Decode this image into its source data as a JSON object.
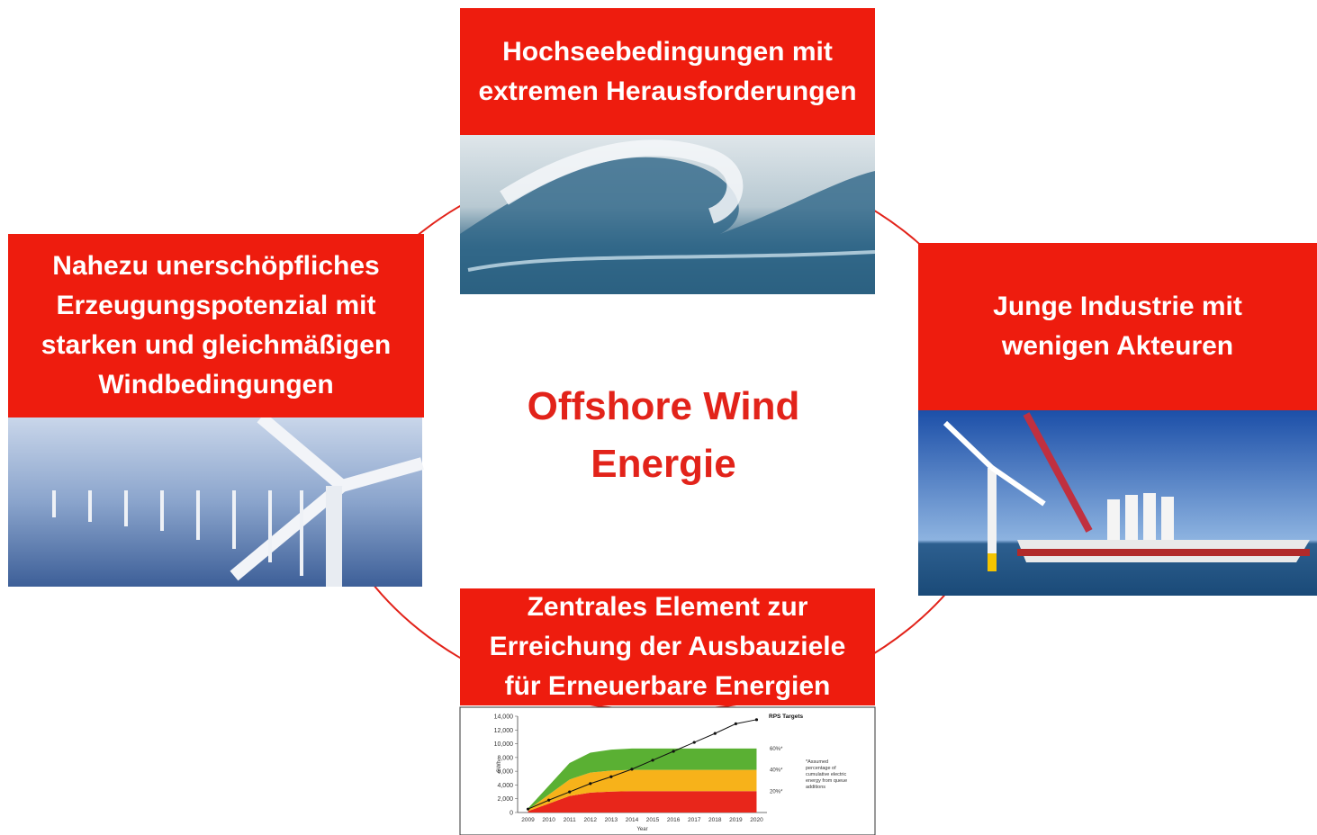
{
  "center": {
    "lines": [
      "Offshore Wind",
      "Energie"
    ]
  },
  "nodes": [
    {
      "lines": [
        "Hochseebedingungen mit",
        "extremen Herausforderungen"
      ]
    },
    {
      "lines": [
        "Nahezu unerschöpfliches",
        "Erzeugungspotenzial mit",
        "starken und gleichmäßigen",
        "Windbedingungen"
      ]
    },
    {
      "lines": [
        "Junge Industrie mit",
        "wenigen Akteuren"
      ]
    },
    {
      "lines": [
        "Zentrales Element zur",
        "Erreichung der Ausbauziele",
        "für Erneuerbare Energien"
      ]
    }
  ],
  "inset_chart": {
    "type": "stacked-area-line",
    "y_label": "GWh",
    "x_label": "Year",
    "categories": [
      "2009",
      "2010",
      "2011",
      "2012",
      "2013",
      "2014",
      "2015",
      "2016",
      "2017",
      "2018",
      "2019",
      "2020"
    ],
    "ylim": [
      0,
      14000
    ],
    "yticks": [
      0,
      {
        "value": 2000,
        "label": "2,000"
      },
      {
        "value": 4000,
        "label": "4,000"
      },
      {
        "value": 6000,
        "label": "6,000"
      },
      {
        "value": 8000,
        "label": "8,000"
      },
      {
        "value": 10000,
        "label": "10,000"
      },
      {
        "value": 12000,
        "label": "12,000"
      },
      {
        "value": 14000,
        "label": "14,000"
      }
    ],
    "series": [
      {
        "name": "20%*",
        "color": "#e8261b",
        "values": [
          200,
          1300,
          2400,
          2900,
          3050,
          3100,
          3100,
          3100,
          3100,
          3100,
          3100,
          3100
        ]
      },
      {
        "name": "40%*",
        "color": "#f7b21a",
        "values": [
          200,
          1300,
          2400,
          2900,
          3050,
          3100,
          3100,
          3100,
          3100,
          3100,
          3100,
          3100
        ]
      },
      {
        "name": "60%*",
        "color": "#5ab033",
        "values": [
          200,
          1300,
          2400,
          2900,
          3050,
          3100,
          3100,
          3100,
          3100,
          3100,
          3100,
          3100
        ]
      }
    ],
    "line": {
      "name": "RPS Targets",
      "color": "#111111",
      "values": [
        500,
        1800,
        3000,
        4200,
        5200,
        6300,
        7600,
        8900,
        10200,
        11500,
        12900,
        13500
      ]
    },
    "note": [
      "*Assumed",
      "percentage of",
      "cumulative electric",
      "energy from queue",
      "additions"
    ]
  }
}
